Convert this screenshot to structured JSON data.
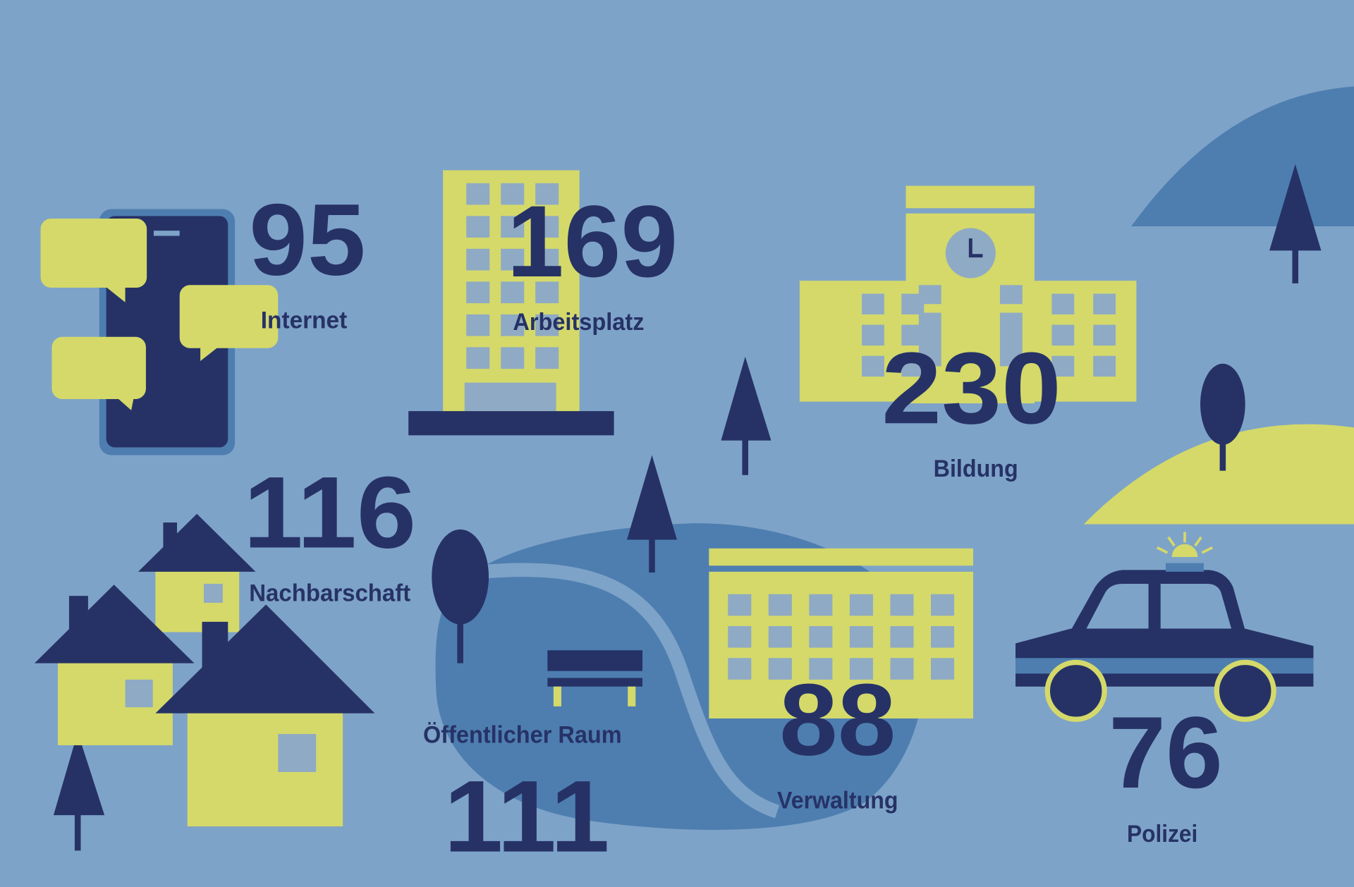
{
  "colors": {
    "background": "#7ea3c8",
    "navy": "#263266",
    "yellow": "#d4d96a",
    "mid_blue": "#4e7eb0",
    "window_blue": "#8faac4"
  },
  "items": {
    "internet": {
      "value": "95",
      "label": "Internet",
      "icon": "smartphone-chat-icon"
    },
    "arbeitsplatz": {
      "value": "169",
      "label": "Arbeitsplatz",
      "icon": "office-tower-icon"
    },
    "bildung": {
      "value": "230",
      "label": "Bildung",
      "icon": "school-building-icon"
    },
    "nachbarschaft": {
      "value": "116",
      "label": "Nachbarschaft",
      "icon": "houses-icon"
    },
    "oeffentlicher_raum": {
      "value": "111",
      "label": "Öffentlicher Raum",
      "icon": "park-bench-icon"
    },
    "verwaltung": {
      "value": "88",
      "label": "Verwaltung",
      "icon": "administration-building-icon"
    },
    "polizei": {
      "value": "76",
      "label": "Polizei",
      "icon": "police-car-icon"
    }
  }
}
